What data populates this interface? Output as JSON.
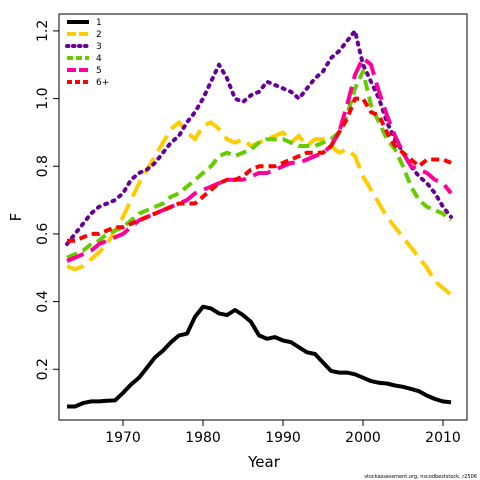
{
  "chart_data": {
    "type": "line",
    "xlabel": "Year",
    "ylabel": "F",
    "xlim": [
      1962,
      2013
    ],
    "ylim": [
      0.05,
      1.25
    ],
    "x_ticks": [
      1970,
      1980,
      1990,
      2000,
      2010
    ],
    "y_ticks": [
      0.2,
      0.4,
      0.6,
      0.8,
      1.0,
      1.2
    ],
    "x_tick_labels": [
      "1970",
      "1980",
      "1990",
      "2000",
      "2010"
    ],
    "y_tick_labels": [
      "0.2",
      "0.4",
      "0.6",
      "0.8",
      "1.0",
      "1.2"
    ],
    "legend_position": "top-left",
    "grid": false,
    "series": [
      {
        "name": "1",
        "color": "#000000",
        "dash": "solid",
        "x": [
          1963,
          1964,
          1965,
          1966,
          1967,
          1968,
          1969,
          1970,
          1971,
          1972,
          1973,
          1974,
          1975,
          1976,
          1977,
          1978,
          1979,
          1980,
          1981,
          1982,
          1983,
          1984,
          1985,
          1986,
          1987,
          1988,
          1989,
          1990,
          1991,
          1992,
          1993,
          1994,
          1995,
          1996,
          1997,
          1998,
          1999,
          2000,
          2001,
          2002,
          2003,
          2004,
          2005,
          2006,
          2007,
          2008,
          2009,
          2010,
          2011
        ],
        "y": [
          0.09,
          0.09,
          0.1,
          0.105,
          0.105,
          0.107,
          0.108,
          0.13,
          0.155,
          0.175,
          0.205,
          0.235,
          0.255,
          0.28,
          0.3,
          0.305,
          0.355,
          0.385,
          0.38,
          0.365,
          0.36,
          0.375,
          0.36,
          0.34,
          0.3,
          0.29,
          0.295,
          0.285,
          0.28,
          0.265,
          0.25,
          0.245,
          0.22,
          0.195,
          0.19,
          0.19,
          0.185,
          0.175,
          0.165,
          0.16,
          0.158,
          0.152,
          0.148,
          0.142,
          0.135,
          0.122,
          0.112,
          0.105,
          0.102
        ]
      },
      {
        "name": "2",
        "color": "#ffcc00",
        "dash": "long",
        "x": [
          1963,
          1964,
          1965,
          1966,
          1967,
          1968,
          1969,
          1970,
          1971,
          1972,
          1973,
          1974,
          1975,
          1976,
          1977,
          1978,
          1979,
          1980,
          1981,
          1982,
          1983,
          1984,
          1985,
          1986,
          1987,
          1988,
          1989,
          1990,
          1991,
          1992,
          1993,
          1994,
          1995,
          1996,
          1997,
          1998,
          1999,
          2000,
          2001,
          2002,
          2003,
          2004,
          2005,
          2006,
          2007,
          2008,
          2009,
          2010,
          2011
        ],
        "y": [
          0.505,
          0.495,
          0.505,
          0.525,
          0.545,
          0.57,
          0.61,
          0.65,
          0.7,
          0.75,
          0.79,
          0.83,
          0.87,
          0.91,
          0.93,
          0.9,
          0.88,
          0.92,
          0.93,
          0.91,
          0.88,
          0.87,
          0.88,
          0.86,
          0.87,
          0.88,
          0.89,
          0.9,
          0.87,
          0.89,
          0.86,
          0.88,
          0.88,
          0.86,
          0.84,
          0.85,
          0.83,
          0.77,
          0.73,
          0.69,
          0.65,
          0.62,
          0.59,
          0.56,
          0.53,
          0.5,
          0.46,
          0.44,
          0.42
        ]
      },
      {
        "name": "3",
        "color": "#660099",
        "dash": "dotted",
        "x": [
          1963,
          1964,
          1965,
          1966,
          1967,
          1968,
          1969,
          1970,
          1971,
          1972,
          1973,
          1974,
          1975,
          1976,
          1977,
          1978,
          1979,
          1980,
          1981,
          1982,
          1983,
          1984,
          1985,
          1986,
          1987,
          1988,
          1989,
          1990,
          1991,
          1992,
          1993,
          1994,
          1995,
          1996,
          1997,
          1998,
          1999,
          2000,
          2001,
          2002,
          2003,
          2004,
          2005,
          2006,
          2007,
          2008,
          2009,
          2010,
          2011
        ],
        "y": [
          0.57,
          0.6,
          0.63,
          0.66,
          0.68,
          0.69,
          0.7,
          0.72,
          0.76,
          0.78,
          0.79,
          0.81,
          0.84,
          0.87,
          0.89,
          0.93,
          0.96,
          1.0,
          1.05,
          1.1,
          1.06,
          1.0,
          0.99,
          1.01,
          1.02,
          1.05,
          1.04,
          1.03,
          1.02,
          1.0,
          1.03,
          1.06,
          1.08,
          1.12,
          1.14,
          1.17,
          1.2,
          1.1,
          1.05,
          1.0,
          0.93,
          0.88,
          0.84,
          0.8,
          0.77,
          0.75,
          0.72,
          0.68,
          0.65
        ]
      },
      {
        "name": "4",
        "color": "#66cc00",
        "dash": "dashed",
        "x": [
          1963,
          1964,
          1965,
          1966,
          1967,
          1968,
          1969,
          1970,
          1971,
          1972,
          1973,
          1974,
          1975,
          1976,
          1977,
          1978,
          1979,
          1980,
          1981,
          1982,
          1983,
          1984,
          1985,
          1986,
          1987,
          1988,
          1989,
          1990,
          1991,
          1992,
          1993,
          1994,
          1995,
          1996,
          1997,
          1998,
          1999,
          2000,
          2001,
          2002,
          2003,
          2004,
          2005,
          2006,
          2007,
          2008,
          2009,
          2010,
          2011
        ],
        "y": [
          0.53,
          0.54,
          0.55,
          0.57,
          0.58,
          0.6,
          0.61,
          0.62,
          0.64,
          0.66,
          0.67,
          0.68,
          0.69,
          0.71,
          0.72,
          0.74,
          0.76,
          0.78,
          0.8,
          0.83,
          0.84,
          0.83,
          0.84,
          0.85,
          0.87,
          0.88,
          0.88,
          0.88,
          0.87,
          0.86,
          0.86,
          0.86,
          0.87,
          0.88,
          0.9,
          0.95,
          1.03,
          1.08,
          0.98,
          0.93,
          0.88,
          0.85,
          0.8,
          0.74,
          0.7,
          0.68,
          0.67,
          0.66,
          0.64
        ]
      },
      {
        "name": "5",
        "color": "#ff0099",
        "dash": "long",
        "x": [
          1963,
          1964,
          1965,
          1966,
          1967,
          1968,
          1969,
          1970,
          1971,
          1972,
          1973,
          1974,
          1975,
          1976,
          1977,
          1978,
          1979,
          1980,
          1981,
          1982,
          1983,
          1984,
          1985,
          1986,
          1987,
          1988,
          1989,
          1990,
          1991,
          1992,
          1993,
          1994,
          1995,
          1996,
          1997,
          1998,
          1999,
          2000,
          2001,
          2002,
          2003,
          2004,
          2005,
          2006,
          2007,
          2008,
          2009,
          2010,
          2011
        ],
        "y": [
          0.52,
          0.53,
          0.54,
          0.55,
          0.57,
          0.58,
          0.59,
          0.6,
          0.62,
          0.64,
          0.65,
          0.66,
          0.67,
          0.68,
          0.69,
          0.7,
          0.72,
          0.73,
          0.74,
          0.75,
          0.76,
          0.76,
          0.76,
          0.77,
          0.78,
          0.78,
          0.79,
          0.8,
          0.81,
          0.81,
          0.82,
          0.83,
          0.84,
          0.86,
          0.9,
          0.98,
          1.07,
          1.12,
          1.1,
          1.02,
          0.95,
          0.89,
          0.84,
          0.8,
          0.79,
          0.78,
          0.76,
          0.75,
          0.72
        ]
      },
      {
        "name": "6+",
        "color": "#ff0000",
        "dash": "short",
        "x": [
          1963,
          1964,
          1965,
          1966,
          1967,
          1968,
          1969,
          1970,
          1971,
          1972,
          1973,
          1974,
          1975,
          1976,
          1977,
          1978,
          1979,
          1980,
          1981,
          1982,
          1983,
          1984,
          1985,
          1986,
          1987,
          1988,
          1989,
          1990,
          1991,
          1992,
          1993,
          1994,
          1995,
          1996,
          1997,
          1998,
          1999,
          2000,
          2001,
          2002,
          2003,
          2004,
          2005,
          2006,
          2007,
          2008,
          2009,
          2010,
          2011
        ],
        "y": [
          0.58,
          0.58,
          0.59,
          0.6,
          0.6,
          0.61,
          0.62,
          0.62,
          0.63,
          0.64,
          0.65,
          0.66,
          0.67,
          0.68,
          0.69,
          0.69,
          0.69,
          0.71,
          0.73,
          0.75,
          0.76,
          0.76,
          0.77,
          0.79,
          0.8,
          0.8,
          0.8,
          0.81,
          0.82,
          0.83,
          0.84,
          0.84,
          0.84,
          0.86,
          0.9,
          0.94,
          1.0,
          1.0,
          0.96,
          0.95,
          0.9,
          0.86,
          0.84,
          0.82,
          0.8,
          0.82,
          0.82,
          0.82,
          0.81
        ]
      }
    ]
  },
  "footnote": "stockassessment.org, nscodbeststock, r2506"
}
